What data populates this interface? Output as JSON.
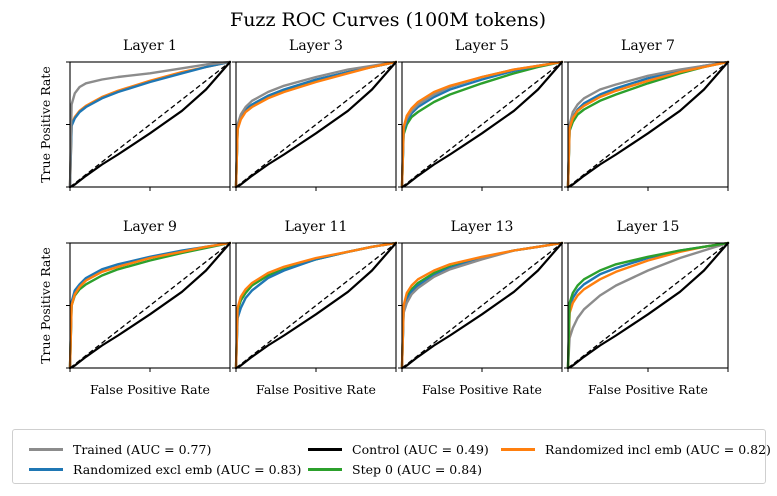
{
  "chart_data": {
    "type": "line",
    "title": "Fuzz ROC Curves (100M tokens)",
    "xlabel": "False Positive Rate",
    "ylabel": "True Positive Rate",
    "xlim": [
      0,
      1
    ],
    "ylim": [
      0,
      1
    ],
    "grid": false,
    "legend_position": "bottom",
    "series_meta": [
      {
        "key": "trained",
        "name": "Trained (AUC = 0.77)",
        "color": "#8c8c8c"
      },
      {
        "key": "rand_excl",
        "name": "Randomized excl emb (AUC = 0.83)",
        "color": "#1f77b4"
      },
      {
        "key": "control",
        "name": "Control (AUC = 0.49)",
        "color": "#000000"
      },
      {
        "key": "step0",
        "name": "Step 0 (AUC = 0.84)",
        "color": "#2ca02c"
      },
      {
        "key": "rand_incl",
        "name": "Randomized incl emb (AUC = 0.82)",
        "color": "#ff7f0e"
      }
    ],
    "legend_layout": [
      [
        "trained",
        "control",
        "rand_incl"
      ],
      [
        "rand_excl",
        "step0"
      ]
    ],
    "x": [
      0,
      0.01,
      0.03,
      0.06,
      0.1,
      0.2,
      0.3,
      0.5,
      0.7,
      0.85,
      1.0
    ],
    "panels": [
      {
        "title": "Layer 1",
        "series": [
          {
            "key": "rand_incl",
            "values": [
              0,
              0.5,
              0.56,
              0.61,
              0.65,
              0.72,
              0.77,
              0.85,
              0.92,
              0.96,
              1.0
            ]
          },
          {
            "key": "rand_excl",
            "values": [
              0,
              0.49,
              0.55,
              0.6,
              0.64,
              0.71,
              0.76,
              0.84,
              0.91,
              0.96,
              1.0
            ]
          },
          {
            "key": "trained",
            "values": [
              0,
              0.66,
              0.75,
              0.8,
              0.83,
              0.86,
              0.88,
              0.91,
              0.95,
              0.98,
              1.0
            ]
          },
          {
            "key": "control",
            "values": [
              0,
              0.005,
              0.02,
              0.05,
              0.09,
              0.18,
              0.26,
              0.43,
              0.61,
              0.78,
              1.0
            ]
          }
        ]
      },
      {
        "title": "Layer 3",
        "series": [
          {
            "key": "step0",
            "values": [
              0,
              0.47,
              0.55,
              0.61,
              0.65,
              0.72,
              0.77,
              0.85,
              0.92,
              0.96,
              1.0
            ]
          },
          {
            "key": "rand_excl",
            "values": [
              0,
              0.48,
              0.56,
              0.62,
              0.66,
              0.73,
              0.78,
              0.86,
              0.92,
              0.96,
              1.0
            ]
          },
          {
            "key": "trained",
            "values": [
              0,
              0.5,
              0.58,
              0.64,
              0.69,
              0.76,
              0.81,
              0.88,
              0.94,
              0.97,
              1.0
            ]
          },
          {
            "key": "rand_incl",
            "values": [
              0,
              0.46,
              0.54,
              0.6,
              0.64,
              0.71,
              0.76,
              0.84,
              0.91,
              0.96,
              1.0
            ]
          },
          {
            "key": "control",
            "values": [
              0,
              0.005,
              0.02,
              0.05,
              0.09,
              0.18,
              0.26,
              0.43,
              0.61,
              0.78,
              1.0
            ]
          }
        ]
      },
      {
        "title": "Layer 5",
        "series": [
          {
            "key": "step0",
            "values": [
              0,
              0.42,
              0.5,
              0.56,
              0.6,
              0.68,
              0.74,
              0.83,
              0.91,
              0.96,
              1.0
            ]
          },
          {
            "key": "rand_excl",
            "values": [
              0,
              0.45,
              0.53,
              0.59,
              0.64,
              0.72,
              0.78,
              0.86,
              0.93,
              0.97,
              1.0
            ]
          },
          {
            "key": "trained",
            "values": [
              0,
              0.47,
              0.55,
              0.61,
              0.66,
              0.74,
              0.8,
              0.88,
              0.94,
              0.97,
              1.0
            ]
          },
          {
            "key": "rand_incl",
            "values": [
              0,
              0.48,
              0.57,
              0.63,
              0.68,
              0.76,
              0.81,
              0.88,
              0.94,
              0.97,
              1.0
            ]
          },
          {
            "key": "control",
            "values": [
              0,
              0.005,
              0.02,
              0.05,
              0.09,
              0.18,
              0.26,
              0.43,
              0.61,
              0.78,
              1.0
            ]
          }
        ]
      },
      {
        "title": "Layer 7",
        "series": [
          {
            "key": "step0",
            "values": [
              0,
              0.45,
              0.52,
              0.58,
              0.62,
              0.69,
              0.74,
              0.83,
              0.91,
              0.96,
              1.0
            ]
          },
          {
            "key": "rand_excl",
            "values": [
              0,
              0.48,
              0.56,
              0.62,
              0.67,
              0.74,
              0.79,
              0.87,
              0.93,
              0.97,
              1.0
            ]
          },
          {
            "key": "trained",
            "values": [
              0,
              0.5,
              0.6,
              0.66,
              0.71,
              0.78,
              0.82,
              0.89,
              0.94,
              0.97,
              1.0
            ]
          },
          {
            "key": "rand_incl",
            "values": [
              0,
              0.47,
              0.55,
              0.61,
              0.65,
              0.72,
              0.77,
              0.85,
              0.92,
              0.96,
              1.0
            ]
          },
          {
            "key": "control",
            "values": [
              0,
              0.005,
              0.02,
              0.05,
              0.09,
              0.18,
              0.26,
              0.43,
              0.61,
              0.78,
              1.0
            ]
          }
        ]
      },
      {
        "title": "Layer 9",
        "series": [
          {
            "key": "step0",
            "values": [
              0,
              0.5,
              0.58,
              0.63,
              0.67,
              0.74,
              0.79,
              0.86,
              0.92,
              0.96,
              1.0
            ]
          },
          {
            "key": "rand_excl",
            "values": [
              0,
              0.53,
              0.62,
              0.67,
              0.72,
              0.79,
              0.83,
              0.89,
              0.94,
              0.97,
              1.0
            ]
          },
          {
            "key": "rand_incl",
            "values": [
              0,
              0.5,
              0.59,
              0.65,
              0.7,
              0.77,
              0.81,
              0.88,
              0.93,
              0.97,
              1.0
            ]
          },
          {
            "key": "control",
            "values": [
              0,
              0.005,
              0.02,
              0.05,
              0.09,
              0.18,
              0.26,
              0.43,
              0.61,
              0.78,
              1.0
            ]
          }
        ]
      },
      {
        "title": "Layer 11",
        "series": [
          {
            "key": "step0",
            "values": [
              0,
              0.46,
              0.54,
              0.6,
              0.66,
              0.74,
              0.79,
              0.87,
              0.93,
              0.97,
              1.0
            ]
          },
          {
            "key": "rand_excl",
            "values": [
              0,
              0.4,
              0.48,
              0.56,
              0.62,
              0.72,
              0.78,
              0.87,
              0.93,
              0.97,
              1.0
            ]
          },
          {
            "key": "rand_incl",
            "values": [
              0,
              0.48,
              0.57,
              0.63,
              0.68,
              0.76,
              0.81,
              0.88,
              0.93,
              0.97,
              1.0
            ]
          },
          {
            "key": "control",
            "values": [
              0,
              0.005,
              0.02,
              0.05,
              0.09,
              0.18,
              0.26,
              0.43,
              0.61,
              0.78,
              1.0
            ]
          }
        ]
      },
      {
        "title": "Layer 13",
        "series": [
          {
            "key": "step0",
            "values": [
              0,
              0.48,
              0.57,
              0.63,
              0.68,
              0.76,
              0.81,
              0.88,
              0.94,
              0.97,
              1.0
            ]
          },
          {
            "key": "rand_excl",
            "values": [
              0,
              0.46,
              0.55,
              0.61,
              0.66,
              0.74,
              0.8,
              0.88,
              0.94,
              0.97,
              1.0
            ]
          },
          {
            "key": "trained",
            "values": [
              0,
              0.44,
              0.52,
              0.59,
              0.64,
              0.73,
              0.79,
              0.87,
              0.94,
              0.97,
              1.0
            ]
          },
          {
            "key": "rand_incl",
            "values": [
              0,
              0.5,
              0.6,
              0.66,
              0.71,
              0.78,
              0.83,
              0.89,
              0.94,
              0.97,
              1.0
            ]
          },
          {
            "key": "control",
            "values": [
              0,
              0.005,
              0.02,
              0.05,
              0.09,
              0.18,
              0.26,
              0.43,
              0.61,
              0.78,
              1.0
            ]
          }
        ]
      },
      {
        "title": "Layer 15",
        "series": [
          {
            "key": "trained",
            "values": [
              0,
              0.24,
              0.32,
              0.4,
              0.47,
              0.58,
              0.66,
              0.78,
              0.88,
              0.94,
              1.0
            ]
          },
          {
            "key": "rand_excl",
            "values": [
              0,
              0.48,
              0.56,
              0.62,
              0.67,
              0.75,
              0.8,
              0.88,
              0.94,
              0.97,
              1.0
            ]
          },
          {
            "key": "rand_incl",
            "values": [
              0,
              0.44,
              0.52,
              0.58,
              0.63,
              0.71,
              0.77,
              0.86,
              0.93,
              0.97,
              1.0
            ]
          },
          {
            "key": "step0",
            "values": [
              0,
              0.52,
              0.6,
              0.66,
              0.71,
              0.78,
              0.83,
              0.89,
              0.94,
              0.97,
              1.0
            ]
          },
          {
            "key": "control",
            "values": [
              0,
              0.005,
              0.02,
              0.05,
              0.09,
              0.18,
              0.26,
              0.43,
              0.61,
              0.78,
              1.0
            ]
          }
        ]
      }
    ]
  }
}
